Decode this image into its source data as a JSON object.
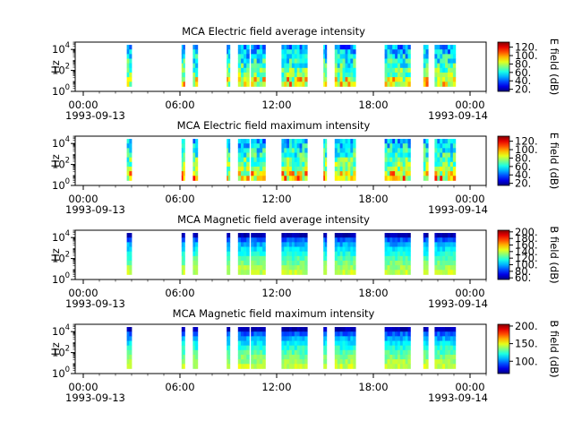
{
  "figure": "MCA spectrogram summary",
  "chart_data": [
    {
      "type": "heatmap",
      "title": "MCA  Electric field average intensity",
      "ylabel": "Hz",
      "colorbar_label": "E field (dB)",
      "colorbar_ticks": [
        "20.",
        "40.",
        "60.",
        "80.",
        "100.",
        "120."
      ],
      "colorbar_range": [
        15,
        132
      ],
      "colorscale": "jet",
      "yscale": "log",
      "ylim": [
        1,
        50000
      ],
      "y_ticks": [
        {
          "base": "10",
          "exp": "0"
        },
        {
          "base": "10",
          "exp": "2"
        },
        {
          "base": "10",
          "exp": "4"
        }
      ],
      "x_ticks": [
        "00:00",
        "06:00",
        "12:00",
        "18:00",
        "00:00"
      ],
      "x_dates": [
        "1993-09-13",
        "1993-09-14"
      ],
      "x_range_hours": [
        -0.5,
        25.0
      ],
      "style": "electric",
      "low_level": 80,
      "high_level": 45,
      "intervals_hours": [
        [
          2.7,
          3.0
        ],
        [
          6.1,
          6.3
        ],
        [
          6.8,
          7.1
        ],
        [
          8.9,
          9.1
        ],
        [
          9.6,
          10.3
        ],
        [
          10.4,
          11.3
        ],
        [
          12.3,
          13.9
        ],
        [
          14.9,
          15.1
        ],
        [
          15.6,
          16.9
        ],
        [
          18.7,
          20.3
        ],
        [
          21.1,
          21.4
        ],
        [
          21.8,
          23.1
        ]
      ]
    },
    {
      "type": "heatmap",
      "title": "MCA  Electric field maximum intensity",
      "ylabel": "Hz",
      "colorbar_label": "E field (dB)",
      "colorbar_ticks": [
        "20.",
        "40.",
        "60.",
        "80.",
        "100.",
        "120."
      ],
      "colorbar_range": [
        15,
        132
      ],
      "colorscale": "jet",
      "yscale": "log",
      "ylim": [
        1,
        50000
      ],
      "y_ticks": [
        {
          "base": "10",
          "exp": "0"
        },
        {
          "base": "10",
          "exp": "2"
        },
        {
          "base": "10",
          "exp": "4"
        }
      ],
      "x_ticks": [
        "00:00",
        "06:00",
        "12:00",
        "18:00",
        "00:00"
      ],
      "x_dates": [
        "1993-09-13",
        "1993-09-14"
      ],
      "x_range_hours": [
        -0.5,
        25.0
      ],
      "style": "electric",
      "low_level": 84,
      "high_level": 50,
      "intervals_hours": [
        [
          2.7,
          3.0
        ],
        [
          6.1,
          6.3
        ],
        [
          6.8,
          7.1
        ],
        [
          8.9,
          9.1
        ],
        [
          9.6,
          10.3
        ],
        [
          10.4,
          11.3
        ],
        [
          12.3,
          13.9
        ],
        [
          14.9,
          15.1
        ],
        [
          15.6,
          16.9
        ],
        [
          18.7,
          20.3
        ],
        [
          21.1,
          21.4
        ],
        [
          21.8,
          23.1
        ]
      ]
    },
    {
      "type": "heatmap",
      "title": "MCA  Magnetic field average intensity",
      "ylabel": "Hz",
      "colorbar_label": "B field (dB)",
      "colorbar_ticks": [
        "60.",
        "80.",
        "100.",
        "120.",
        "140.",
        "160.",
        "180.",
        "200."
      ],
      "colorbar_range": [
        55,
        205
      ],
      "colorscale": "jet",
      "yscale": "log",
      "ylim": [
        1,
        50000
      ],
      "y_ticks": [
        {
          "base": "10",
          "exp": "0"
        },
        {
          "base": "10",
          "exp": "2"
        },
        {
          "base": "10",
          "exp": "4"
        }
      ],
      "x_ticks": [
        "00:00",
        "06:00",
        "12:00",
        "18:00",
        "00:00"
      ],
      "x_dates": [
        "1993-09-13",
        "1993-09-14"
      ],
      "x_range_hours": [
        -0.5,
        25.0
      ],
      "style": "magnetic",
      "low_level": 140,
      "high_level": 62,
      "intervals_hours": [
        [
          2.7,
          3.0
        ],
        [
          6.1,
          6.3
        ],
        [
          6.8,
          7.1
        ],
        [
          8.9,
          9.1
        ],
        [
          9.6,
          10.3
        ],
        [
          10.4,
          11.3
        ],
        [
          12.3,
          13.9
        ],
        [
          14.9,
          15.1
        ],
        [
          15.6,
          16.9
        ],
        [
          18.7,
          20.3
        ],
        [
          21.1,
          21.4
        ],
        [
          21.8,
          23.1
        ]
      ]
    },
    {
      "type": "heatmap",
      "title": "MCA  Magnetic field maximum intensity",
      "ylabel": "Hz",
      "colorbar_label": "B field (dB)",
      "colorbar_ticks": [
        "100.",
        "150.",
        "200."
      ],
      "colorbar_range": [
        65,
        205
      ],
      "colorscale": "jet",
      "yscale": "log",
      "ylim": [
        1,
        50000
      ],
      "y_ticks": [
        {
          "base": "10",
          "exp": "0"
        },
        {
          "base": "10",
          "exp": "2"
        },
        {
          "base": "10",
          "exp": "4"
        }
      ],
      "x_ticks": [
        "00:00",
        "06:00",
        "12:00",
        "18:00",
        "00:00"
      ],
      "x_dates": [
        "1993-09-13",
        "1993-09-14"
      ],
      "x_range_hours": [
        -0.5,
        25.0
      ],
      "style": "magnetic",
      "low_level": 145,
      "high_level": 72,
      "intervals_hours": [
        [
          2.7,
          3.0
        ],
        [
          6.1,
          6.3
        ],
        [
          6.8,
          7.1
        ],
        [
          8.9,
          9.1
        ],
        [
          9.6,
          10.3
        ],
        [
          10.4,
          11.3
        ],
        [
          12.3,
          13.9
        ],
        [
          14.9,
          15.1
        ],
        [
          15.6,
          16.9
        ],
        [
          18.7,
          20.3
        ],
        [
          21.1,
          21.4
        ],
        [
          21.8,
          23.1
        ]
      ]
    }
  ]
}
